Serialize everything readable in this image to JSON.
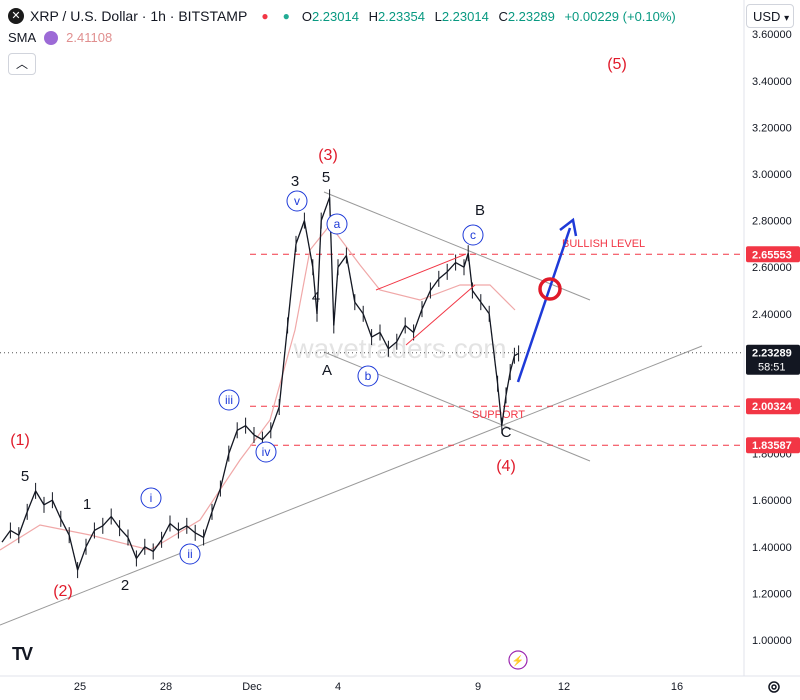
{
  "header": {
    "symbol_icon": "x-logo-icon",
    "title": "XRP / U.S. Dollar · 1h · BITSTAMP",
    "open_label": "O",
    "open": "2.23014",
    "high_label": "H",
    "high": "2.23354",
    "low_label": "L",
    "low": "2.23014",
    "close_label": "C",
    "close": "2.23289",
    "change": "+0.00229 (+0.10%)"
  },
  "indicator": {
    "name": "SMA",
    "value": "2.41108"
  },
  "currency_button": "USD",
  "watermark": "wavetraders.com",
  "chart_data": {
    "type": "candlestick",
    "x_tick_labels": [
      "25",
      "28",
      "Dec",
      "4",
      "9",
      "12",
      "16"
    ],
    "y_tick_labels": [
      "3.60000",
      "3.40000",
      "3.20000",
      "3.00000",
      "2.80000",
      "2.60000",
      "2.40000",
      "2.20000",
      "2.00000",
      "1.80000",
      "1.60000",
      "1.40000",
      "1.20000",
      "1.00000"
    ],
    "ylim": [
      0.95,
      3.62
    ],
    "price_tags": [
      {
        "value": "2.65553",
        "color": "#f23645"
      },
      {
        "value": "2.23289",
        "color": "#131722",
        "sub": "58:51"
      },
      {
        "value": "2.00324",
        "color": "#f23645"
      },
      {
        "value": "1.83587",
        "color": "#f23645"
      }
    ],
    "levels": [
      {
        "price": 2.65553,
        "label": "BULLISH LEVEL",
        "color": "#f23645"
      },
      {
        "price": 2.00324,
        "label": "SUPPORT",
        "color": "#f23645"
      },
      {
        "price": 1.83587,
        "label": "",
        "color": "#f23645"
      }
    ],
    "current_price": 2.23289,
    "wave_labels_red": [
      "(1)",
      "(2)",
      "(3)",
      "(4)",
      "(5)"
    ],
    "wave_labels_black": [
      "5",
      "1",
      "2",
      "3",
      "5",
      "4",
      "A",
      "B",
      "C"
    ],
    "wave_labels_circled": [
      "i",
      "ii",
      "iii",
      "iv",
      "v",
      "a",
      "b",
      "c"
    ],
    "price_path": [
      [
        "0",
        1.42
      ],
      [
        "2",
        1.47
      ],
      [
        "4",
        1.45
      ],
      [
        "6",
        1.55
      ],
      [
        "8",
        1.64
      ],
      [
        "10",
        1.58
      ],
      [
        "12",
        1.6
      ],
      [
        "14",
        1.52
      ],
      [
        "16",
        1.45
      ],
      [
        "18",
        1.3
      ],
      [
        "20",
        1.4
      ],
      [
        "22",
        1.47
      ],
      [
        "24",
        1.49
      ],
      [
        "26",
        1.53
      ],
      [
        "28",
        1.48
      ],
      [
        "30",
        1.44
      ],
      [
        "32",
        1.35
      ],
      [
        "34",
        1.4
      ],
      [
        "36",
        1.38
      ],
      [
        "38",
        1.43
      ],
      [
        "40",
        1.5
      ],
      [
        "42",
        1.47
      ],
      [
        "44",
        1.49
      ],
      [
        "46",
        1.46
      ],
      [
        "48",
        1.44
      ],
      [
        "50",
        1.55
      ],
      [
        "52",
        1.65
      ],
      [
        "54",
        1.8
      ],
      [
        "56",
        1.9
      ],
      [
        "58",
        1.92
      ],
      [
        "60",
        1.88
      ],
      [
        "62",
        1.86
      ],
      [
        "64",
        1.9
      ],
      [
        "66",
        2.0
      ],
      [
        "68",
        2.35
      ],
      [
        "70",
        2.7
      ],
      [
        "72",
        2.8
      ],
      [
        "74",
        2.6
      ],
      [
        "75",
        2.4
      ],
      [
        "76",
        2.8
      ],
      [
        "78",
        2.9
      ],
      [
        "79",
        2.35
      ],
      [
        "80",
        2.6
      ],
      [
        "82",
        2.65
      ],
      [
        "84",
        2.45
      ],
      [
        "86",
        2.4
      ],
      [
        "88",
        2.3
      ],
      [
        "90",
        2.32
      ],
      [
        "92",
        2.25
      ],
      [
        "94",
        2.28
      ],
      [
        "96",
        2.35
      ],
      [
        "98",
        2.32
      ],
      [
        "100",
        2.42
      ],
      [
        "102",
        2.5
      ],
      [
        "104",
        2.55
      ],
      [
        "106",
        2.58
      ],
      [
        "108",
        2.62
      ],
      [
        "110",
        2.6
      ],
      [
        "111",
        2.66
      ],
      [
        "112",
        2.5
      ],
      [
        "114",
        2.45
      ],
      [
        "116",
        2.4
      ],
      [
        "118",
        2.1
      ],
      [
        "119",
        1.92
      ],
      [
        "120",
        2.05
      ],
      [
        "121",
        2.15
      ],
      [
        "122",
        2.22
      ],
      [
        "123",
        2.23
      ]
    ]
  }
}
